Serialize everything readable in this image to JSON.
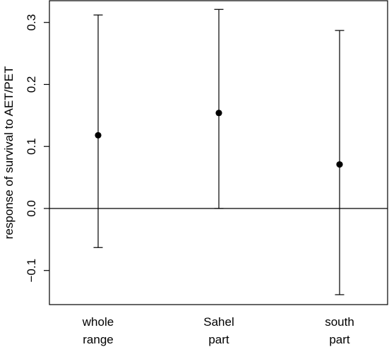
{
  "chart_data": {
    "type": "scatter",
    "title": "",
    "xlabel": "",
    "ylabel": "response of survival to AET/PET",
    "categories": [
      [
        "whole",
        "range"
      ],
      [
        "Sahel",
        "part"
      ],
      [
        "south",
        "part"
      ]
    ],
    "series": [
      {
        "points": [
          {
            "estimate": 0.118,
            "lower": -0.063,
            "upper": 0.312
          },
          {
            "estimate": 0.154,
            "lower": 0.0,
            "upper": 0.321
          },
          {
            "estimate": 0.071,
            "lower": -0.139,
            "upper": 0.287
          }
        ]
      }
    ],
    "ylim": [
      -0.155,
      0.335
    ],
    "yticks": [
      {
        "value": -0.1,
        "label": "−0.1"
      },
      {
        "value": 0.0,
        "label": "0.0"
      },
      {
        "value": 0.1,
        "label": "0.1"
      },
      {
        "value": 0.2,
        "label": "0.2"
      },
      {
        "value": 0.3,
        "label": "0.3"
      }
    ],
    "reference_line": 0,
    "grid": false,
    "legend": "none",
    "colors": {
      "marks": "#000000",
      "background": "#ffffff"
    }
  }
}
